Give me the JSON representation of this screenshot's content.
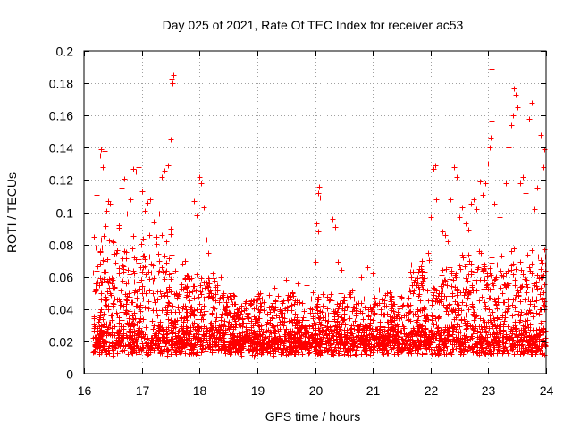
{
  "chart_data": {
    "type": "scatter",
    "title": "Day 025 of 2021, Rate Of TEC Index for receiver ac53",
    "xlabel": "GPS time / hours",
    "ylabel": "ROTI / TECUs",
    "xlim": [
      16,
      24
    ],
    "ylim": [
      0,
      0.2
    ],
    "x_ticks": [
      16,
      17,
      18,
      19,
      20,
      21,
      22,
      23,
      24
    ],
    "x_tick_labels": [
      "16",
      "17",
      "18",
      "19",
      "20",
      "21",
      "22",
      "23",
      "24"
    ],
    "y_ticks": [
      0,
      0.02,
      0.04,
      0.06,
      0.08,
      0.1,
      0.12,
      0.14,
      0.16,
      0.18,
      0.2
    ],
    "y_tick_labels": [
      "0",
      "0.02",
      "0.04",
      "0.06",
      "0.08",
      "0.1",
      "0.12",
      "0.14",
      "0.16",
      "0.18",
      "0.2"
    ],
    "grid": true,
    "marker": "plus",
    "color": "#ff0000",
    "series": [
      {
        "name": "ROTI",
        "points": [
          [
            16.2,
            0.078
          ],
          [
            16.22,
            0.111
          ],
          [
            16.28,
            0.135
          ],
          [
            16.3,
            0.139
          ],
          [
            16.32,
            0.128
          ],
          [
            16.35,
            0.138
          ],
          [
            16.38,
            0.101
          ],
          [
            16.42,
            0.107
          ],
          [
            16.45,
            0.105
          ],
          [
            16.5,
            0.082
          ],
          [
            16.55,
            0.075
          ],
          [
            16.6,
            0.092
          ],
          [
            16.65,
            0.115
          ],
          [
            16.7,
            0.121
          ],
          [
            16.75,
            0.099
          ],
          [
            16.8,
            0.108
          ],
          [
            16.85,
            0.127
          ],
          [
            16.9,
            0.125
          ],
          [
            16.95,
            0.128
          ],
          [
            17.0,
            0.113
          ],
          [
            17.05,
            0.101
          ],
          [
            17.1,
            0.106
          ],
          [
            17.15,
            0.108
          ],
          [
            17.2,
            0.094
          ],
          [
            17.25,
            0.085
          ],
          [
            17.3,
            0.099
          ],
          [
            17.35,
            0.122
          ],
          [
            17.4,
            0.126
          ],
          [
            17.45,
            0.129
          ],
          [
            17.5,
            0.145
          ],
          [
            17.52,
            0.183
          ],
          [
            17.54,
            0.185
          ],
          [
            17.53,
            0.18
          ],
          [
            17.6,
            0.05
          ],
          [
            17.7,
            0.068
          ],
          [
            17.75,
            0.07
          ],
          [
            17.9,
            0.107
          ],
          [
            17.95,
            0.098
          ],
          [
            18.0,
            0.122
          ],
          [
            18.02,
            0.118
          ],
          [
            18.08,
            0.103
          ],
          [
            18.12,
            0.083
          ],
          [
            18.15,
            0.075
          ],
          [
            18.25,
            0.052
          ],
          [
            18.3,
            0.055
          ],
          [
            18.6,
            0.043
          ],
          [
            18.9,
            0.045
          ],
          [
            19.05,
            0.05
          ],
          [
            19.3,
            0.053
          ],
          [
            19.5,
            0.058
          ],
          [
            19.7,
            0.056
          ],
          [
            19.85,
            0.055
          ],
          [
            20.0,
            0.069
          ],
          [
            20.02,
            0.093
          ],
          [
            20.05,
            0.112
          ],
          [
            20.07,
            0.116
          ],
          [
            20.09,
            0.109
          ],
          [
            20.06,
            0.088
          ],
          [
            20.3,
            0.096
          ],
          [
            20.35,
            0.091
          ],
          [
            20.4,
            0.069
          ],
          [
            20.45,
            0.064
          ],
          [
            20.8,
            0.06
          ],
          [
            20.9,
            0.066
          ],
          [
            21.0,
            0.062
          ],
          [
            21.1,
            0.052
          ],
          [
            21.3,
            0.043
          ],
          [
            21.5,
            0.047
          ],
          [
            21.7,
            0.05
          ],
          [
            21.75,
            0.055
          ],
          [
            21.8,
            0.065
          ],
          [
            21.85,
            0.07
          ],
          [
            21.9,
            0.078
          ],
          [
            21.95,
            0.075
          ],
          [
            22.0,
            0.097
          ],
          [
            22.05,
            0.127
          ],
          [
            22.08,
            0.129
          ],
          [
            22.1,
            0.108
          ],
          [
            22.2,
            0.088
          ],
          [
            22.25,
            0.086
          ],
          [
            22.3,
            0.082
          ],
          [
            22.35,
            0.108
          ],
          [
            22.4,
            0.128
          ],
          [
            22.45,
            0.122
          ],
          [
            22.5,
            0.097
          ],
          [
            22.55,
            0.103
          ],
          [
            22.6,
            0.093
          ],
          [
            22.65,
            0.089
          ],
          [
            22.7,
            0.105
          ],
          [
            22.75,
            0.108
          ],
          [
            22.8,
            0.102
          ],
          [
            22.85,
            0.119
          ],
          [
            22.9,
            0.111
          ],
          [
            22.95,
            0.118
          ],
          [
            23.0,
            0.13
          ],
          [
            23.02,
            0.14
          ],
          [
            23.04,
            0.146
          ],
          [
            23.06,
            0.157
          ],
          [
            23.05,
            0.189
          ],
          [
            23.1,
            0.105
          ],
          [
            23.2,
            0.097
          ],
          [
            23.3,
            0.118
          ],
          [
            23.35,
            0.14
          ],
          [
            23.4,
            0.154
          ],
          [
            23.42,
            0.16
          ],
          [
            23.45,
            0.177
          ],
          [
            23.48,
            0.173
          ],
          [
            23.5,
            0.165
          ],
          [
            23.55,
            0.118
          ],
          [
            23.6,
            0.122
          ],
          [
            23.65,
            0.112
          ],
          [
            23.7,
            0.158
          ],
          [
            23.75,
            0.168
          ],
          [
            23.8,
            0.102
          ],
          [
            23.85,
            0.115
          ],
          [
            23.9,
            0.148
          ],
          [
            23.95,
            0.128
          ],
          [
            23.97,
            0.139
          ],
          [
            24.0,
            0.113
          ]
        ]
      }
    ]
  }
}
